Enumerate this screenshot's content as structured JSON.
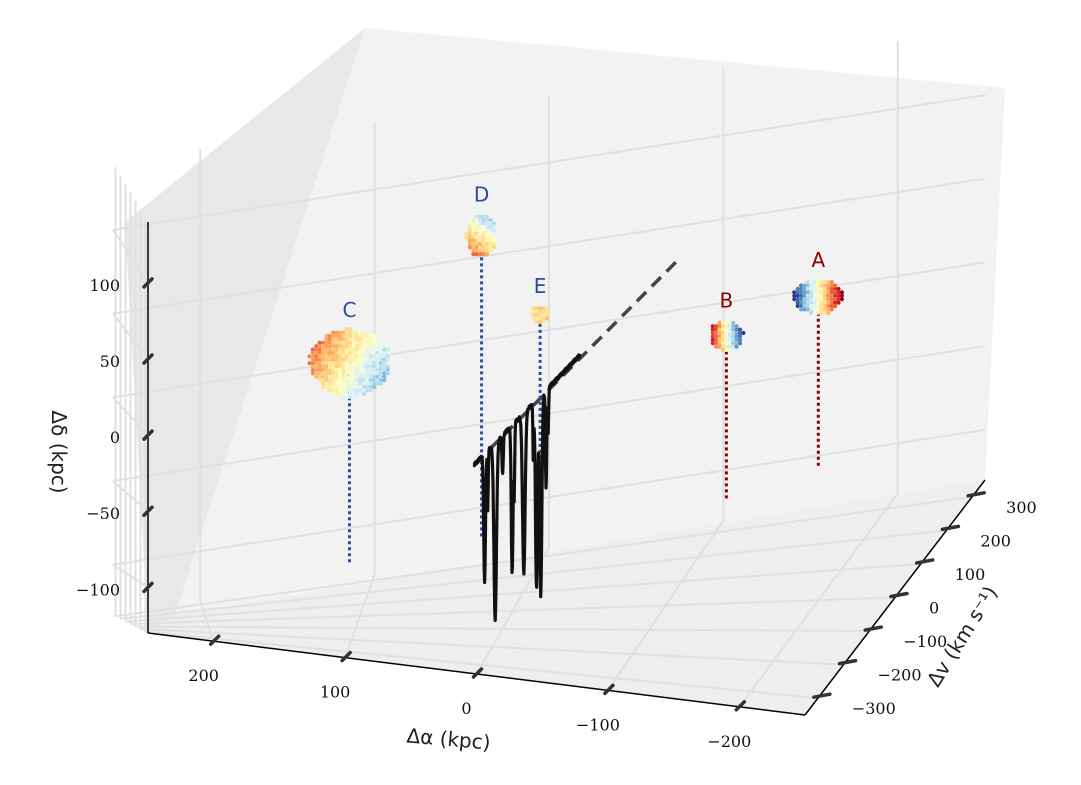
{
  "colors": {
    "background": "#ffffff",
    "back_wall": "#f2f2f2",
    "side_wall": "#e8e8e8",
    "floor": "#eeeeee",
    "grid": "#e0e0e0",
    "spectrum": "#111111",
    "line_of_sight": "#444444",
    "blue_label": "#2e4a9c",
    "red_label": "#8b0000"
  },
  "chart_data": {
    "type": "scatter3d",
    "xlabel": "Δα (kpc)",
    "ylabel": "Δv (km s⁻¹)",
    "zlabel": "Δδ (kpc)",
    "xlim": [
      250,
      -250
    ],
    "ylim": [
      -350,
      350
    ],
    "zlim": [
      -130,
      140
    ],
    "x_ticks": [
      {
        "value": 200,
        "label": "200"
      },
      {
        "value": 100,
        "label": "100"
      },
      {
        "value": 0,
        "label": "0"
      },
      {
        "value": -100,
        "label": "−100"
      },
      {
        "value": -200,
        "label": "−200"
      }
    ],
    "y_ticks": [
      {
        "value": -300,
        "label": "−300"
      },
      {
        "value": -200,
        "label": "−200"
      },
      {
        "value": -100,
        "label": "−100"
      },
      {
        "value": 0,
        "label": "0"
      },
      {
        "value": 100,
        "label": "100"
      },
      {
        "value": 200,
        "label": "200"
      },
      {
        "value": 300,
        "label": "300"
      }
    ],
    "z_ticks": [
      {
        "value": -100,
        "label": "−100"
      },
      {
        "value": -50,
        "label": "−50"
      },
      {
        "value": 0,
        "label": "0"
      },
      {
        "value": 50,
        "label": "50"
      },
      {
        "value": 100,
        "label": "100"
      }
    ],
    "grid": true,
    "galaxies": [
      {
        "label": "A",
        "label_color": "red",
        "velocity_field": "blue-to-red",
        "delta_alpha_kpc": -165,
        "delta_v_kms": 260,
        "delta_delta_kpc": 10
      },
      {
        "label": "B",
        "label_color": "red",
        "velocity_field": "red-to-blue",
        "delta_alpha_kpc": -120,
        "delta_v_kms": 170,
        "delta_delta_kpc": 8
      },
      {
        "label": "C",
        "label_color": "blue",
        "velocity_field": "orange-to-lightblue",
        "delta_alpha_kpc": 105,
        "delta_v_kms": -70,
        "delta_delta_kpc": 35
      },
      {
        "label": "D",
        "label_color": "blue",
        "velocity_field": "blue-to-orange",
        "delta_alpha_kpc": 25,
        "delta_v_kms": 80,
        "delta_delta_kpc": 95
      },
      {
        "label": "E",
        "label_color": "blue",
        "velocity_field": "yellow",
        "delta_alpha_kpc": -10,
        "delta_v_kms": 110,
        "delta_delta_kpc": 40
      }
    ],
    "sightline": {
      "style": "dashed",
      "description_free": true
    },
    "absorption_spectrum": {
      "style": "solid black",
      "plotted_along_sightline": true
    }
  }
}
